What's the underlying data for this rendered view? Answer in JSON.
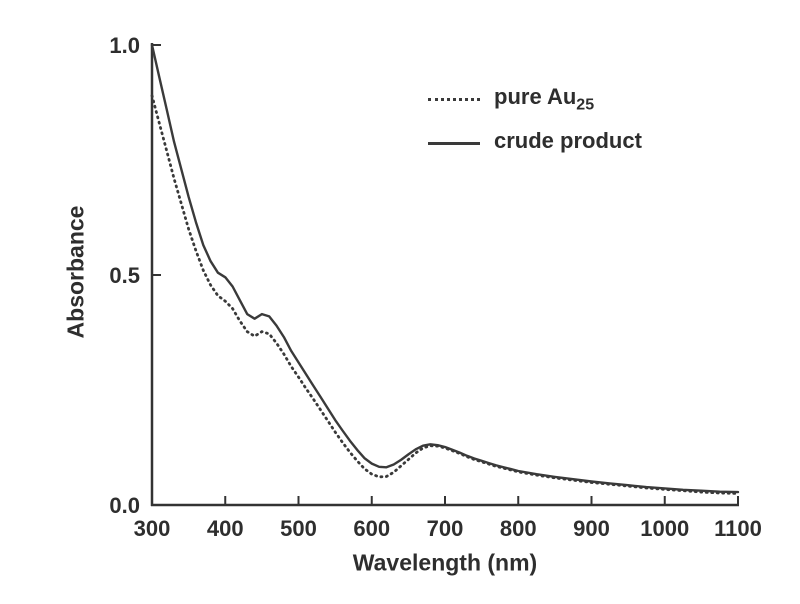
{
  "figure": {
    "legend": {
      "items": [
        {
          "style": "dotted",
          "label_main": "pure Au",
          "label_sub": "25"
        },
        {
          "style": "solid",
          "label_main": "crude product",
          "label_sub": ""
        }
      ]
    }
  },
  "chart_data": {
    "type": "line",
    "title": "",
    "xlabel": "Wavelength (nm)",
    "ylabel": "Absorbance",
    "xlim": [
      300,
      1100
    ],
    "ylim": [
      0,
      1.0
    ],
    "x_ticks": [
      300,
      400,
      500,
      600,
      700,
      800,
      900,
      1000,
      1100
    ],
    "y_ticks": [
      0.0,
      0.5,
      1.0
    ],
    "y_tick_labels": [
      "0.0",
      "0.5",
      "1.0"
    ],
    "grid": false,
    "legend_position": "upper right inside",
    "line_color": "#3a3a3a",
    "axis_color": "#333333",
    "text_color": "#2e2e2e",
    "series": [
      {
        "name": "pure Au25",
        "line_style": "dotted",
        "x": [
          300,
          310,
          320,
          330,
          340,
          350,
          360,
          370,
          380,
          390,
          400,
          410,
          420,
          430,
          440,
          450,
          460,
          470,
          480,
          490,
          500,
          510,
          520,
          530,
          540,
          550,
          560,
          570,
          580,
          590,
          600,
          610,
          620,
          630,
          640,
          650,
          660,
          670,
          680,
          690,
          700,
          710,
          720,
          730,
          740,
          750,
          760,
          770,
          780,
          790,
          800,
          825,
          850,
          875,
          900,
          925,
          950,
          975,
          1000,
          1025,
          1050,
          1075,
          1100
        ],
        "y": [
          0.89,
          0.83,
          0.77,
          0.71,
          0.655,
          0.6,
          0.553,
          0.51,
          0.478,
          0.455,
          0.443,
          0.427,
          0.4,
          0.377,
          0.367,
          0.377,
          0.372,
          0.352,
          0.328,
          0.301,
          0.278,
          0.254,
          0.231,
          0.207,
          0.183,
          0.159,
          0.136,
          0.115,
          0.096,
          0.079,
          0.067,
          0.061,
          0.062,
          0.071,
          0.085,
          0.099,
          0.113,
          0.124,
          0.129,
          0.128,
          0.124,
          0.118,
          0.112,
          0.105,
          0.099,
          0.094,
          0.089,
          0.084,
          0.08,
          0.076,
          0.072,
          0.065,
          0.059,
          0.054,
          0.049,
          0.045,
          0.041,
          0.037,
          0.034,
          0.031,
          0.028,
          0.026,
          0.025
        ]
      },
      {
        "name": "crude product",
        "line_style": "solid",
        "x": [
          300,
          310,
          320,
          330,
          340,
          350,
          360,
          370,
          380,
          390,
          400,
          410,
          420,
          430,
          440,
          450,
          460,
          470,
          480,
          490,
          500,
          510,
          520,
          530,
          540,
          550,
          560,
          570,
          580,
          590,
          600,
          610,
          620,
          630,
          640,
          650,
          660,
          670,
          680,
          690,
          700,
          710,
          720,
          730,
          740,
          750,
          760,
          770,
          780,
          790,
          800,
          825,
          850,
          875,
          900,
          925,
          950,
          975,
          1000,
          1025,
          1050,
          1075,
          1100
        ],
        "y": [
          1.0,
          0.93,
          0.86,
          0.79,
          0.73,
          0.67,
          0.615,
          0.565,
          0.53,
          0.505,
          0.495,
          0.475,
          0.445,
          0.415,
          0.405,
          0.415,
          0.41,
          0.39,
          0.365,
          0.335,
          0.31,
          0.285,
          0.26,
          0.235,
          0.21,
          0.185,
          0.162,
          0.14,
          0.12,
          0.102,
          0.09,
          0.083,
          0.082,
          0.088,
          0.098,
          0.11,
          0.121,
          0.129,
          0.132,
          0.13,
          0.126,
          0.12,
          0.114,
          0.107,
          0.101,
          0.096,
          0.091,
          0.086,
          0.082,
          0.078,
          0.074,
          0.067,
          0.061,
          0.056,
          0.051,
          0.047,
          0.043,
          0.039,
          0.036,
          0.033,
          0.031,
          0.029,
          0.028
        ]
      }
    ]
  }
}
